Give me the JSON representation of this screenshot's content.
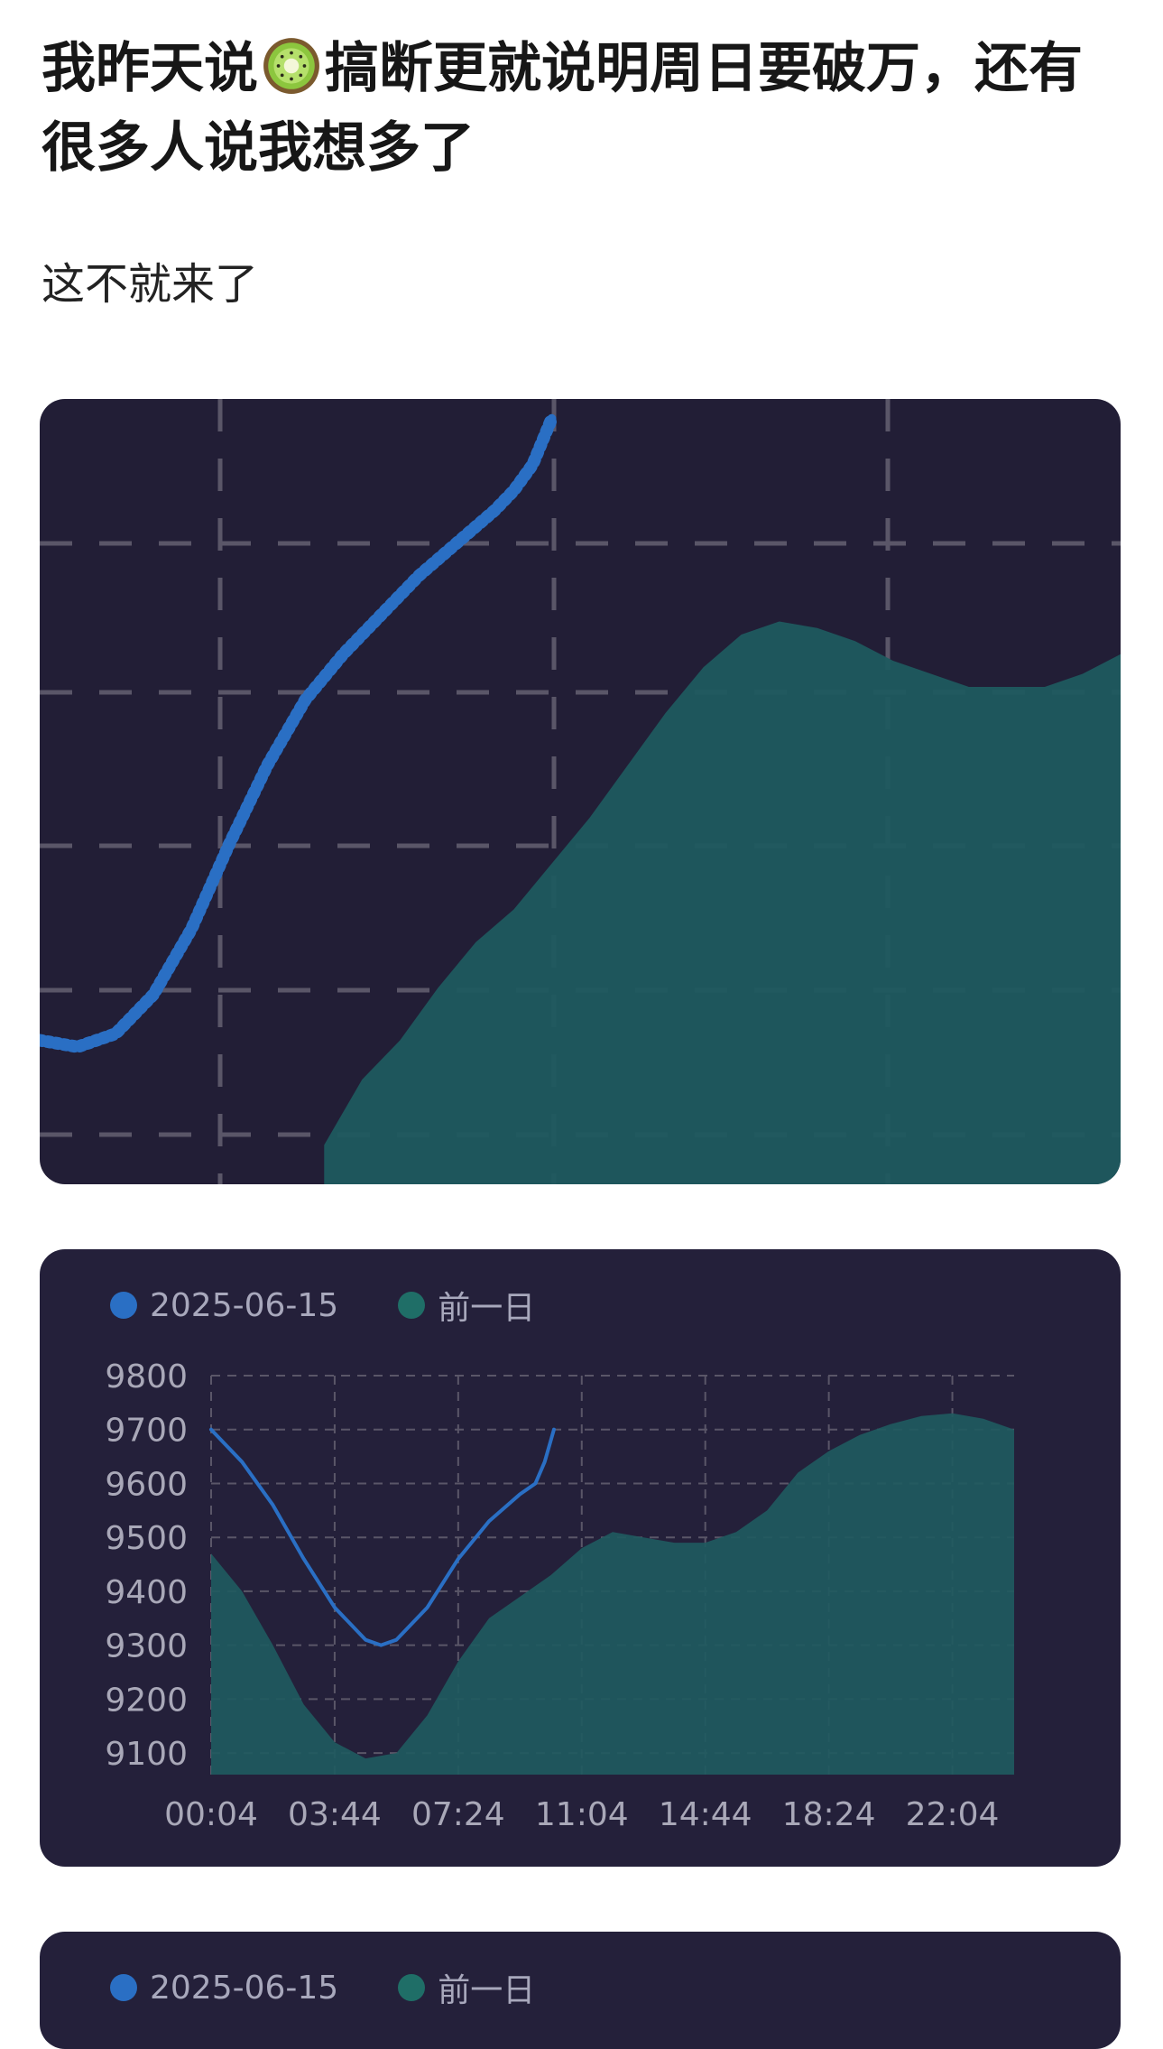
{
  "post": {
    "title_before_emoji": "我昨天说",
    "emoji": "kiwi-emoji",
    "title_after_emoji": "搞断更就说明周日要破万，还有很多人说我想多了",
    "body": "这不就来了"
  },
  "colors": {
    "card_bg": "#24203a",
    "series_today": "#2a6fc4",
    "series_prev": "#1f5a5f",
    "grid": "#5a5668",
    "axis_text": "#a9a8b8"
  },
  "charts": {
    "legend_today": "2025-06-15",
    "legend_prev": "前一日"
  },
  "chart_data": [
    {
      "type": "line",
      "series": [
        {
          "name": "2025-06-15",
          "x": [
            0,
            4,
            8,
            12,
            16,
            20,
            24,
            28,
            32,
            36,
            40,
            44,
            48,
            50,
            52,
            54
          ],
          "values": [
            2.2,
            2.1,
            2.3,
            2.9,
            3.9,
            5.2,
            6.4,
            7.4,
            8.1,
            8.7,
            9.3,
            9.8,
            10.3,
            10.6,
            11.0,
            11.7
          ]
        },
        {
          "name": "前一日",
          "area": true,
          "x": [
            30,
            34,
            38,
            42,
            46,
            50,
            54,
            58,
            62,
            66,
            70,
            74,
            78,
            82,
            86,
            90,
            94,
            98,
            102,
            106,
            110,
            114
          ],
          "values": [
            0.6,
            1.6,
            2.2,
            3.0,
            3.7,
            4.2,
            4.9,
            5.6,
            6.4,
            7.2,
            7.9,
            8.4,
            8.6,
            8.5,
            8.3,
            8.0,
            7.8,
            7.6,
            7.6,
            7.6,
            7.8,
            8.1
          ]
        }
      ],
      "xlim": [
        0,
        114
      ],
      "ylim": [
        0,
        12
      ]
    },
    {
      "type": "line",
      "categories": [
        "00:04",
        "03:44",
        "07:24",
        "11:04",
        "14:44",
        "18:24",
        "22:04"
      ],
      "yticks": [
        "9800",
        "9700",
        "9600",
        "9500",
        "9400",
        "9300",
        "9200",
        "9100"
      ],
      "ylim": [
        9060,
        9800
      ],
      "xlim": [
        0,
        26
      ],
      "series": [
        {
          "name": "2025-06-15",
          "x": [
            0,
            1,
            2,
            3,
            4,
            5,
            5.5,
            6,
            7,
            8,
            9,
            10,
            10.5,
            10.8,
            11.1
          ],
          "values": [
            9700,
            9640,
            9560,
            9460,
            9370,
            9310,
            9300,
            9310,
            9370,
            9460,
            9530,
            9580,
            9600,
            9640,
            9700
          ]
        },
        {
          "name": "前一日",
          "area": true,
          "x": [
            0,
            1,
            2,
            3,
            4,
            5,
            6,
            7,
            8,
            9,
            10,
            11,
            12,
            13,
            14,
            15,
            16,
            17,
            18,
            19,
            20,
            21,
            22,
            23,
            24,
            25,
            26
          ],
          "values": [
            9470,
            9400,
            9300,
            9190,
            9120,
            9090,
            9100,
            9170,
            9270,
            9350,
            9390,
            9430,
            9480,
            9510,
            9500,
            9490,
            9490,
            9510,
            9550,
            9620,
            9660,
            9690,
            9710,
            9725,
            9730,
            9720,
            9700
          ]
        }
      ]
    }
  ]
}
